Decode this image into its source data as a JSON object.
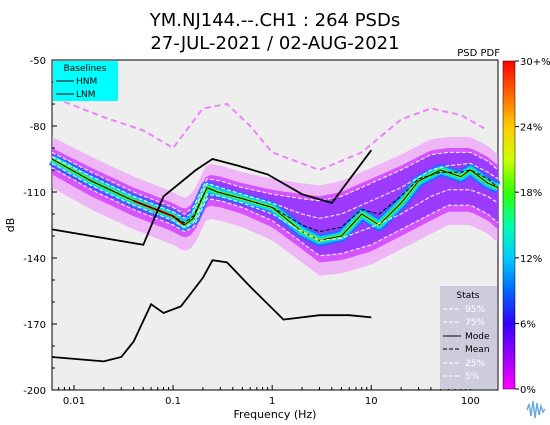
{
  "chart_data": {
    "type": "heatmap",
    "title_line1": "YM.NJ144.--.CH1 : 264 PSDs",
    "title_line2": "27-JUL-2021 / 02-AUG-2021",
    "corner_label": "PSD PDF",
    "xlabel": "Frequency (Hz)",
    "ylabel": "dB",
    "x_scale": "log",
    "xlim": [
      0.006,
      190
    ],
    "ylim": [
      -200,
      -50
    ],
    "x_ticks": [
      {
        "value": 0.01,
        "label": "0.01"
      },
      {
        "value": 0.1,
        "label": "0.1"
      },
      {
        "value": 1,
        "label": "1"
      },
      {
        "value": 10,
        "label": "10"
      },
      {
        "value": 100,
        "label": "100"
      }
    ],
    "y_ticks": [
      {
        "value": -50,
        "label": "-50"
      },
      {
        "value": -80,
        "label": "-80"
      },
      {
        "value": -110,
        "label": "-110"
      },
      {
        "value": -140,
        "label": "-140"
      },
      {
        "value": -170,
        "label": "-170"
      },
      {
        "value": -200,
        "label": "-200"
      }
    ],
    "colorbar": {
      "label_values": [
        "30+%",
        "24%",
        "18%",
        "12%",
        "6%",
        "0%"
      ],
      "colors": [
        "#ff00ff",
        "#9900ff",
        "#3300ff",
        "#0066ff",
        "#00ccff",
        "#00ffaa",
        "#33ff00",
        "#ccff00",
        "#ffcc00",
        "#ff6600",
        "#ff0000"
      ]
    },
    "baselines": {
      "title": "Baselines",
      "items": [
        "HNM",
        "LNM"
      ],
      "HNM": [
        [
          0.006,
          -127
        ],
        [
          0.05,
          -134
        ],
        [
          0.08,
          -112
        ],
        [
          0.17,
          -100
        ],
        [
          0.25,
          -95
        ],
        [
          0.45,
          -98
        ],
        [
          0.9,
          -102
        ],
        [
          2,
          -111
        ],
        [
          4,
          -115
        ],
        [
          10,
          -91
        ]
      ],
      "LNM": [
        [
          0.006,
          -185
        ],
        [
          0.02,
          -187
        ],
        [
          0.03,
          -185
        ],
        [
          0.04,
          -178
        ],
        [
          0.06,
          -161
        ],
        [
          0.08,
          -165
        ],
        [
          0.12,
          -162
        ],
        [
          0.2,
          -149
        ],
        [
          0.25,
          -141
        ],
        [
          0.35,
          -142
        ],
        [
          0.6,
          -153
        ],
        [
          1.3,
          -168
        ],
        [
          3,
          -166
        ],
        [
          6,
          -166
        ],
        [
          10,
          -167
        ]
      ]
    },
    "series": [
      {
        "name": "Mode",
        "style": "solid",
        "points": [
          [
            0.006,
            -95
          ],
          [
            0.015,
            -105
          ],
          [
            0.04,
            -114
          ],
          [
            0.1,
            -121
          ],
          [
            0.13,
            -125
          ],
          [
            0.16,
            -122
          ],
          [
            0.22,
            -108
          ],
          [
            0.28,
            -110
          ],
          [
            0.5,
            -113
          ],
          [
            1,
            -117
          ],
          [
            2,
            -128
          ],
          [
            3,
            -132
          ],
          [
            5,
            -130
          ],
          [
            8,
            -120
          ],
          [
            12,
            -125
          ],
          [
            20,
            -115
          ],
          [
            30,
            -105
          ],
          [
            50,
            -100
          ],
          [
            80,
            -103
          ],
          [
            100,
            -100
          ],
          [
            150,
            -106
          ],
          [
            190,
            -108
          ]
        ]
      },
      {
        "name": "Mean",
        "style": "dashed",
        "points": [
          [
            0.006,
            -95
          ],
          [
            0.015,
            -105
          ],
          [
            0.04,
            -114
          ],
          [
            0.1,
            -121
          ],
          [
            0.13,
            -124
          ],
          [
            0.16,
            -121
          ],
          [
            0.22,
            -108
          ],
          [
            0.28,
            -110
          ],
          [
            0.5,
            -113
          ],
          [
            1,
            -117
          ],
          [
            2,
            -125
          ],
          [
            3,
            -128
          ],
          [
            5,
            -126
          ],
          [
            8,
            -118
          ],
          [
            12,
            -120
          ],
          [
            20,
            -112
          ],
          [
            30,
            -104
          ],
          [
            50,
            -101
          ],
          [
            80,
            -101
          ],
          [
            100,
            -100
          ],
          [
            150,
            -104
          ],
          [
            190,
            -108
          ]
        ]
      },
      {
        "name": "95%",
        "style": "dashed-white",
        "points": [
          [
            0.006,
            -92
          ],
          [
            0.015,
            -101
          ],
          [
            0.04,
            -110
          ],
          [
            0.1,
            -117
          ],
          [
            0.13,
            -120
          ],
          [
            0.16,
            -117
          ],
          [
            0.22,
            -104
          ],
          [
            0.3,
            -105
          ],
          [
            0.5,
            -108
          ],
          [
            1,
            -111
          ],
          [
            2,
            -113
          ],
          [
            3,
            -114
          ],
          [
            5,
            -112
          ],
          [
            10,
            -106
          ],
          [
            20,
            -100
          ],
          [
            40,
            -93
          ],
          [
            60,
            -92
          ],
          [
            100,
            -92
          ],
          [
            150,
            -96
          ],
          [
            190,
            -100
          ]
        ]
      },
      {
        "name": "75%",
        "style": "dashed-white",
        "points": [
          [
            0.006,
            -94
          ],
          [
            0.015,
            -103
          ],
          [
            0.04,
            -112
          ],
          [
            0.1,
            -119
          ],
          [
            0.13,
            -122
          ],
          [
            0.16,
            -119
          ],
          [
            0.22,
            -106
          ],
          [
            0.3,
            -108
          ],
          [
            0.5,
            -111
          ],
          [
            1,
            -115
          ],
          [
            2,
            -120
          ],
          [
            3,
            -122
          ],
          [
            5,
            -120
          ],
          [
            10,
            -114
          ],
          [
            20,
            -108
          ],
          [
            40,
            -100
          ],
          [
            60,
            -98
          ],
          [
            100,
            -97
          ],
          [
            150,
            -101
          ],
          [
            190,
            -104
          ]
        ]
      },
      {
        "name": "25%",
        "style": "dashed-white",
        "points": [
          [
            0.006,
            -97
          ],
          [
            0.015,
            -107
          ],
          [
            0.04,
            -116
          ],
          [
            0.1,
            -123
          ],
          [
            0.13,
            -126
          ],
          [
            0.16,
            -124
          ],
          [
            0.22,
            -111
          ],
          [
            0.3,
            -112
          ],
          [
            0.5,
            -115
          ],
          [
            1,
            -120
          ],
          [
            2,
            -128
          ],
          [
            3,
            -132
          ],
          [
            5,
            -131
          ],
          [
            10,
            -126
          ],
          [
            20,
            -120
          ],
          [
            40,
            -112
          ],
          [
            60,
            -109
          ],
          [
            100,
            -109
          ],
          [
            150,
            -112
          ],
          [
            190,
            -115
          ]
        ]
      },
      {
        "name": "5%",
        "style": "dashed-white",
        "points": [
          [
            0.006,
            -99
          ],
          [
            0.015,
            -109
          ],
          [
            0.04,
            -118
          ],
          [
            0.1,
            -125
          ],
          [
            0.13,
            -128
          ],
          [
            0.16,
            -126
          ],
          [
            0.22,
            -113
          ],
          [
            0.3,
            -114
          ],
          [
            0.5,
            -117
          ],
          [
            1,
            -123
          ],
          [
            2,
            -133
          ],
          [
            3,
            -139
          ],
          [
            5,
            -138
          ],
          [
            10,
            -134
          ],
          [
            20,
            -127
          ],
          [
            40,
            -120
          ],
          [
            60,
            -116
          ],
          [
            100,
            -116
          ],
          [
            150,
            -120
          ],
          [
            190,
            -124
          ]
        ]
      }
    ],
    "stats_legend": {
      "title": "Stats",
      "items": [
        "95%",
        "75%",
        "Mode",
        "Mean",
        "25%",
        "5%"
      ]
    }
  }
}
